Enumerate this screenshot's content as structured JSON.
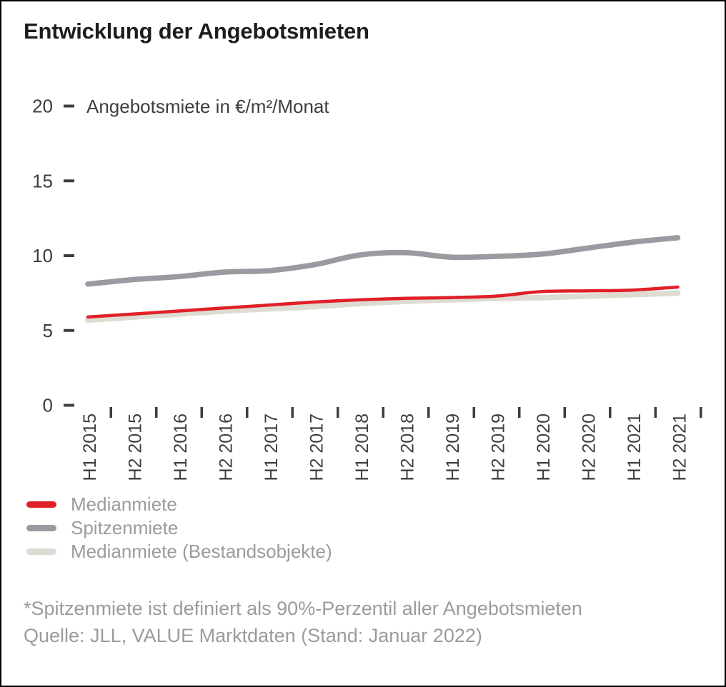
{
  "chart_data": {
    "type": "line",
    "title": "Entwicklung der Angebotsmieten",
    "unit_label": "Angebotsmiete in €/m²/Monat",
    "categories": [
      "H1 2015",
      "H2 2015",
      "H1 2016",
      "H2 2016",
      "H1 2017",
      "H2 2017",
      "H1 2018",
      "H2 2018",
      "H1 2019",
      "H2 2019",
      "H1 2020",
      "H2 2020",
      "H1 2021",
      "H2 2021"
    ],
    "series": [
      {
        "name": "Medianmiete",
        "color": "#e02028",
        "stroke_width": 4.5,
        "values": [
          5.9,
          6.1,
          6.3,
          6.5,
          6.7,
          6.9,
          7.05,
          7.15,
          7.2,
          7.3,
          7.6,
          7.65,
          7.7,
          7.9
        ]
      },
      {
        "name": "Spitzenmiete",
        "color": "#9a9ba1",
        "stroke_width": 7.5,
        "values": [
          8.1,
          8.4,
          8.6,
          8.9,
          9.0,
          9.4,
          10.05,
          10.2,
          9.9,
          9.95,
          10.1,
          10.5,
          10.9,
          11.2
        ]
      },
      {
        "name": "Medianmiete (Bestandsobjekte)",
        "color": "#dedcd2",
        "stroke_width": 8,
        "values": [
          5.7,
          5.9,
          6.1,
          6.3,
          6.45,
          6.6,
          6.8,
          6.95,
          7.05,
          7.15,
          7.2,
          7.3,
          7.4,
          7.5
        ]
      }
    ],
    "z_order": [
      1,
      2,
      0
    ],
    "y_ticks": [
      0,
      5,
      10,
      15,
      20
    ],
    "ylim": [
      0,
      20
    ],
    "grid": false,
    "legend_position": "bottom-left",
    "axis_color": "#3e3e3d"
  },
  "footnote": "*Spitzenmiete ist definiert als 90%-Perzentil aller Angebotsmieten",
  "source": "Quelle: JLL, VALUE Marktdaten (Stand: Januar 2022)"
}
